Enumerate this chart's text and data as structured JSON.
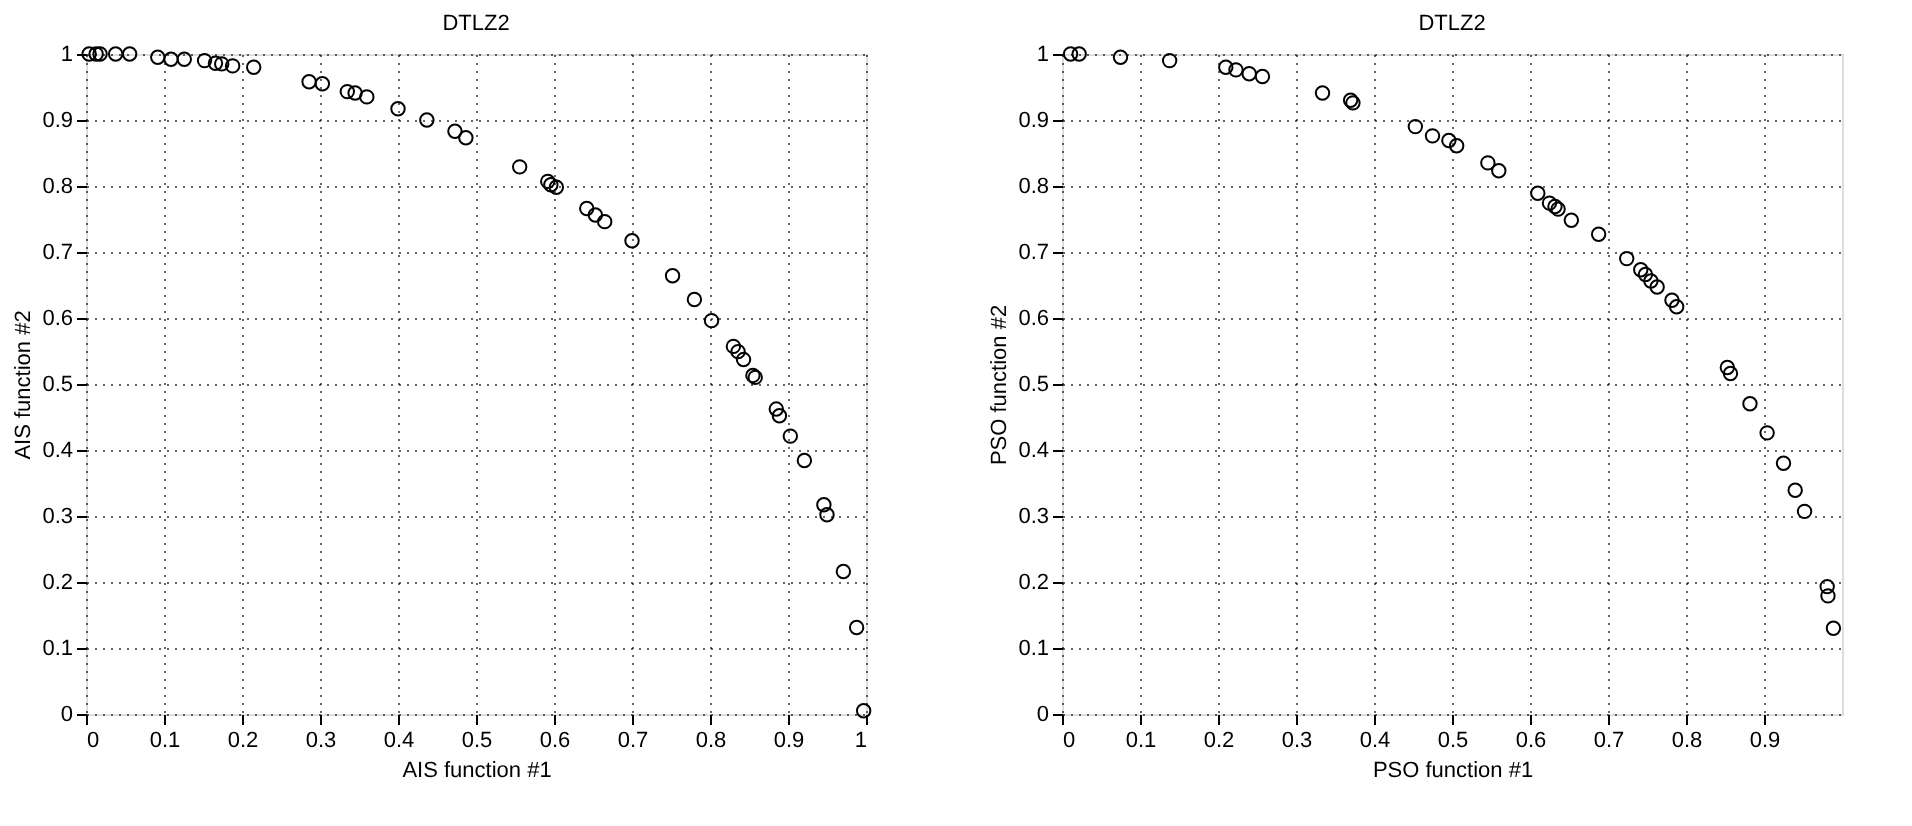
{
  "chart_data": [
    {
      "type": "scatter",
      "title": "DTLZ2",
      "xlabel": "AIS function #1",
      "ylabel": "AIS function #2",
      "marker": "circle",
      "grid": true,
      "xlim": [
        0,
        1
      ],
      "ylim": [
        0,
        1
      ],
      "xticks": [
        0,
        0.1,
        0.2,
        0.3,
        0.4,
        0.5,
        0.6,
        0.7,
        0.8,
        0.9,
        1
      ],
      "yticks": [
        0,
        0.1,
        0.2,
        0.3,
        0.4,
        0.5,
        0.6,
        0.7,
        0.8,
        0.9,
        1
      ],
      "series": [
        {
          "color": "#000000",
          "x": [
            0.004,
            0.013,
            0.018,
            0.038,
            0.056,
            0.092,
            0.109,
            0.126,
            0.152,
            0.166,
            0.174,
            0.188,
            0.215,
            0.286,
            0.303,
            0.335,
            0.345,
            0.36,
            0.4,
            0.437,
            0.473,
            0.487,
            0.556,
            0.592,
            0.596,
            0.603,
            0.642,
            0.653,
            0.665,
            0.7,
            0.752,
            0.78,
            0.802,
            0.83,
            0.836,
            0.843,
            0.855,
            0.858,
            0.885,
            0.889,
            0.903,
            0.921,
            0.946,
            0.95,
            0.971,
            0.988,
            0.997
          ],
          "values": [
            1,
            1,
            1,
            1,
            1,
            0.995,
            0.992,
            0.992,
            0.99,
            0.986,
            0.985,
            0.982,
            0.98,
            0.958,
            0.955,
            0.943,
            0.941,
            0.935,
            0.917,
            0.9,
            0.883,
            0.873,
            0.829,
            0.807,
            0.802,
            0.798,
            0.766,
            0.756,
            0.746,
            0.717,
            0.664,
            0.628,
            0.596,
            0.557,
            0.549,
            0.537,
            0.513,
            0.51,
            0.462,
            0.452,
            0.421,
            0.384,
            0.317,
            0.302,
            0.216,
            0.131,
            0.005
          ]
        }
      ]
    },
    {
      "type": "scatter",
      "title": "DTLZ2",
      "xlabel": "PSO function #1",
      "ylabel": "PSO function #2",
      "marker": "circle",
      "grid": true,
      "xlim": [
        0,
        1
      ],
      "ylim": [
        0,
        1
      ],
      "xticks": [
        0,
        0.1,
        0.2,
        0.3,
        0.4,
        0.5,
        0.6,
        0.7,
        0.8,
        0.9
      ],
      "yticks": [
        0,
        0.1,
        0.2,
        0.3,
        0.4,
        0.5,
        0.6,
        0.7,
        0.8,
        0.9,
        1
      ],
      "series": [
        {
          "color": "#000000",
          "x": [
            0.011,
            0.022,
            0.075,
            0.138,
            0.21,
            0.223,
            0.24,
            0.257,
            0.334,
            0.37,
            0.373,
            0.453,
            0.475,
            0.496,
            0.506,
            0.546,
            0.56,
            0.61,
            0.625,
            0.632,
            0.636,
            0.653,
            0.688,
            0.724,
            0.742,
            0.748,
            0.755,
            0.763,
            0.782,
            0.788,
            0.853,
            0.857,
            0.882,
            0.904,
            0.925,
            0.94,
            0.952,
            0.981,
            0.982,
            0.989
          ],
          "values": [
            1,
            1,
            0.995,
            0.99,
            0.98,
            0.976,
            0.97,
            0.966,
            0.941,
            0.93,
            0.926,
            0.89,
            0.876,
            0.869,
            0.861,
            0.835,
            0.823,
            0.789,
            0.774,
            0.769,
            0.765,
            0.748,
            0.727,
            0.69,
            0.673,
            0.666,
            0.656,
            0.647,
            0.627,
            0.617,
            0.525,
            0.516,
            0.47,
            0.426,
            0.38,
            0.339,
            0.307,
            0.193,
            0.179,
            0.13
          ]
        }
      ]
    }
  ]
}
